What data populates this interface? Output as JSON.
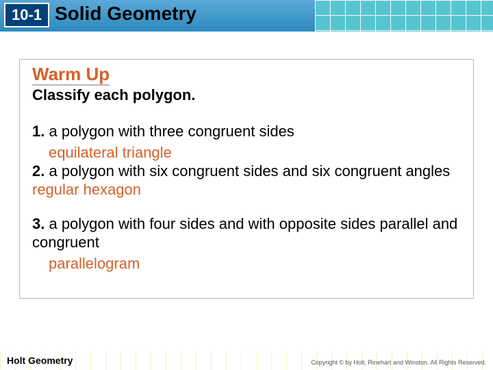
{
  "header": {
    "lesson_number": "10-1",
    "title": "Solid Geometry",
    "bar_gradient_top": "#5aa8d8",
    "bar_gradient_bottom": "#2d8abf",
    "grid_color": "#58c8d1",
    "badge_bg": "#00417a"
  },
  "content": {
    "warmup_label": "Warm Up",
    "warmup_color": "#d4622a",
    "instruction": "Classify each polygon.",
    "items": [
      {
        "num": "1.",
        "prompt": " a polygon with three congruent sides",
        "answer": "equilateral triangle",
        "answer_inline": false
      },
      {
        "num": "2.",
        "prompt": " a polygon with six congruent sides and six congruent angles",
        "answer": "regular hexagon",
        "answer_inline": true
      },
      {
        "num": "3.",
        "prompt": " a polygon with four sides and with opposite sides parallel and congruent",
        "answer": "parallelogram",
        "answer_inline": false
      }
    ],
    "box_border": "#b8b8b8",
    "text_color": "#000000",
    "fontsize_title": 26,
    "fontsize_body": 22
  },
  "footer": {
    "brand": "Holt Geometry",
    "copyright": "Copyright © by Holt, Rinehart and Winston. All Rights Reserved.",
    "strip_color": "#f5e05a"
  }
}
